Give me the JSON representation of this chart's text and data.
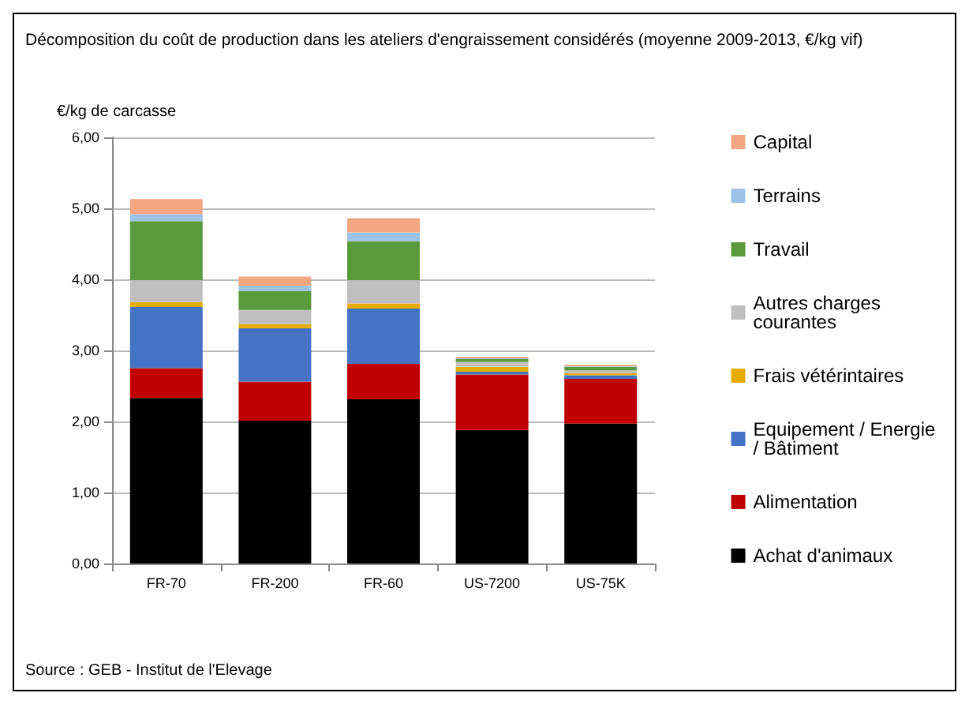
{
  "chart_data": {
    "type": "bar",
    "stacked": true,
    "title": "Décomposition du coût de production dans les ateliers d'engraissement considérés (moyenne 2009-2013, €/kg vif)",
    "ylabel": "€/kg de carcasse",
    "annotations": [
      "Source : GEB - Institut de l'Elevage"
    ],
    "categories": [
      "FR-70",
      "FR-200",
      "FR-60",
      "US-7200",
      "US-75K"
    ],
    "series": [
      {
        "name": "Achat d'animaux",
        "color": "#000000",
        "values": [
          2.33,
          2.01,
          2.31,
          1.88,
          1.97
        ]
      },
      {
        "name": "Alimentation",
        "color": "#c00000",
        "values": [
          0.42,
          0.55,
          0.5,
          0.78,
          0.63
        ]
      },
      {
        "name": "Equipement / Energie / Bâtiment",
        "color": "#4472c4",
        "values": [
          0.86,
          0.75,
          0.78,
          0.04,
          0.05
        ]
      },
      {
        "name": "Frais vétérintaires",
        "color": "#e6ac00",
        "values": [
          0.07,
          0.06,
          0.07,
          0.07,
          0.03
        ]
      },
      {
        "name": "Autres charges courantes",
        "color": "#bfbfbf",
        "values": [
          0.31,
          0.2,
          0.33,
          0.07,
          0.04
        ]
      },
      {
        "name": "Travail",
        "color": "#5b9a3c",
        "values": [
          0.83,
          0.27,
          0.55,
          0.04,
          0.05
        ]
      },
      {
        "name": "Terrains",
        "color": "#9dc3e6",
        "values": [
          0.1,
          0.07,
          0.12,
          0.01,
          0.01
        ]
      },
      {
        "name": "Capital",
        "color": "#f4a582",
        "values": [
          0.21,
          0.13,
          0.2,
          0.02,
          0.02
        ]
      }
    ],
    "ylim": [
      0,
      6
    ],
    "yticks": [
      {
        "value": 0,
        "label": "0,00"
      },
      {
        "value": 1,
        "label": "1,00"
      },
      {
        "value": 2,
        "label": "2,00"
      },
      {
        "value": 3,
        "label": "3,00"
      },
      {
        "value": 4,
        "label": "4,00"
      },
      {
        "value": 5,
        "label": "5,00"
      },
      {
        "value": 6,
        "label": "6,00"
      }
    ],
    "grid": "y",
    "legend": "right"
  }
}
